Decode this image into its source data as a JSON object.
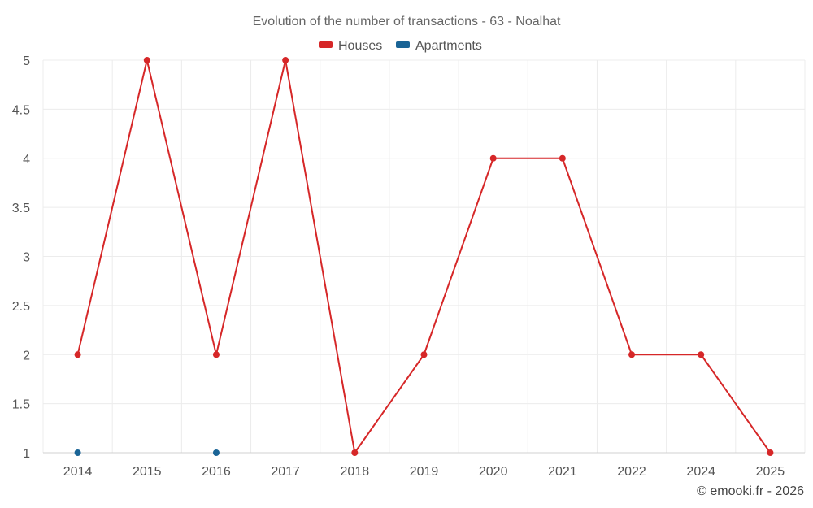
{
  "chart_data": {
    "type": "line",
    "title": "Evolution of the number of transactions - 63 - Noalhat",
    "categories": [
      "2014",
      "2015",
      "2016",
      "2017",
      "2018",
      "2019",
      "2020",
      "2021",
      "2022",
      "2024",
      "2025"
    ],
    "series": [
      {
        "name": "Houses",
        "color": "#d62728",
        "values": [
          2,
          5,
          2,
          5,
          1,
          2,
          4,
          4,
          2,
          2,
          1
        ]
      },
      {
        "name": "Apartments",
        "color": "#1a6496",
        "values": [
          1,
          null,
          1,
          null,
          null,
          null,
          null,
          null,
          null,
          null,
          null
        ]
      }
    ],
    "yticks": [
      "1",
      "1.5",
      "2",
      "2.5",
      "3",
      "3.5",
      "4",
      "4.5",
      "5"
    ],
    "ylim": [
      1,
      5
    ],
    "grid": true,
    "legend": "top-center"
  },
  "credit": "© emooki.fr - 2026"
}
